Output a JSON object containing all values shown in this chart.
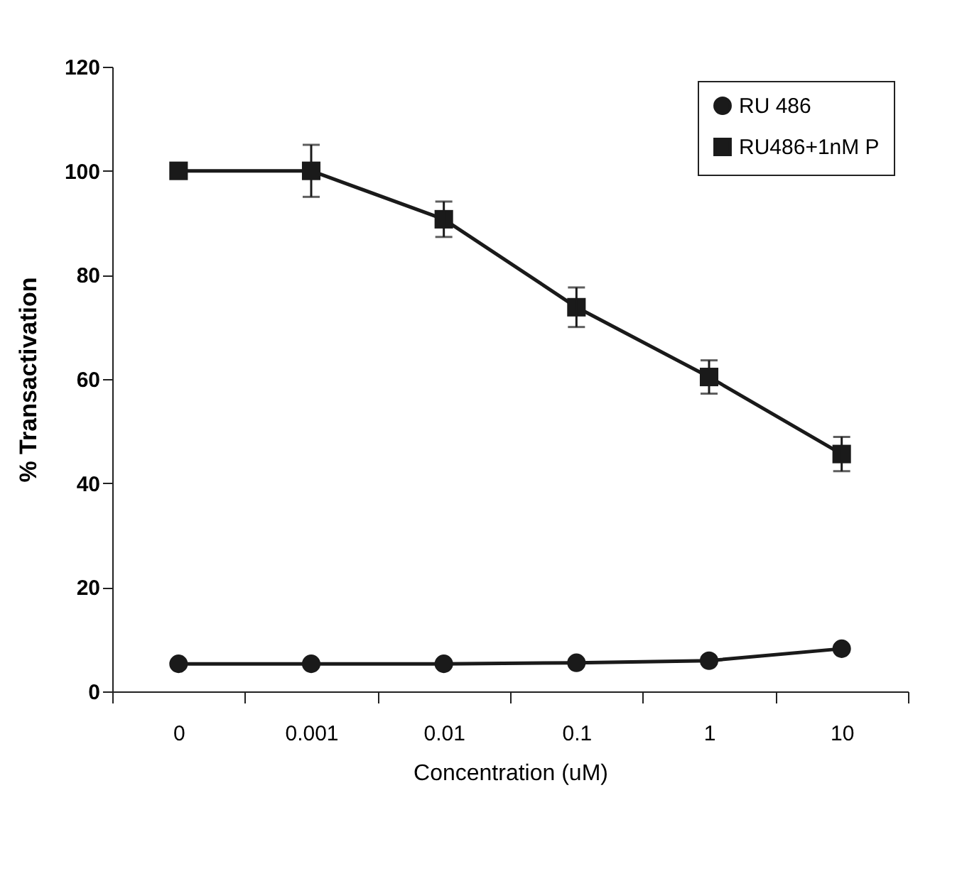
{
  "chart_data": {
    "type": "line",
    "xlabel": "Concentration (uM)",
    "ylabel": "% Transactivation",
    "categories": [
      "0",
      "0.001",
      "0.01",
      "0.1",
      "1",
      "10"
    ],
    "ylim": [
      0,
      120
    ],
    "yticks": [
      0,
      20,
      40,
      60,
      80,
      100,
      120
    ],
    "grid": false,
    "legend": "top right",
    "series": [
      {
        "name": "RU 486",
        "color": "#1a1a1a",
        "marker": "circle",
        "values": [
          5.3,
          5.3,
          5.3,
          5.5,
          5.9,
          8.2
        ]
      },
      {
        "name": "RU486+1nM P",
        "color": "#1a1a1a",
        "marker": "square",
        "values": [
          100,
          100,
          90.7,
          73.8,
          60.4,
          45.6
        ],
        "errors": [
          null,
          5,
          3.4,
          3.8,
          3.2,
          3.3
        ]
      }
    ]
  }
}
